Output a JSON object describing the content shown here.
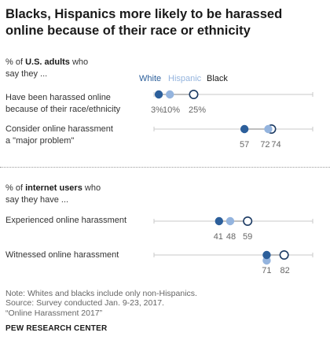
{
  "title": "Blacks, Hispanics more likely to be harassed online because of their race or ethnicity",
  "sections": [
    {
      "label_prefix": "% of ",
      "label_bold": "U.S. adults",
      "label_suffix": " who",
      "label_line2": "say they ..."
    },
    {
      "label_prefix": "% of ",
      "label_bold": "internet users",
      "label_suffix": " who",
      "label_line2": "say they have ..."
    }
  ],
  "legend": [
    {
      "name": "White",
      "color": "#2c5f9b"
    },
    {
      "name": "Hispanic",
      "color": "#94b4de"
    },
    {
      "name": "Black",
      "color": "#ffffff",
      "stroke": "#1b3a63",
      "text_color": "#1a1a1a"
    }
  ],
  "chart_data": {
    "type": "scatter",
    "subtype": "dot-plot",
    "x_range": [
      0,
      100
    ],
    "series": [
      "White",
      "Hispanic",
      "Black"
    ],
    "rows": [
      {
        "section": 0,
        "label": [
          "Have been harassed online",
          "because of their race/ethnicity"
        ],
        "values": [
          3,
          10,
          25
        ],
        "value_labels": [
          "3%",
          "10%",
          "25%"
        ]
      },
      {
        "section": 0,
        "label": [
          "Consider online harassment",
          "a \"major problem\""
        ],
        "values": [
          57,
          72,
          74
        ],
        "value_labels": [
          "57",
          "72",
          "74"
        ]
      },
      {
        "section": 1,
        "label": [
          "Experienced online harassment"
        ],
        "values": [
          41,
          48,
          59
        ],
        "value_labels": [
          "41",
          "48",
          "59"
        ]
      },
      {
        "section": 1,
        "label": [
          "Witnessed online harassment"
        ],
        "values": [
          71,
          71,
          82
        ],
        "value_labels": [
          "71",
          "",
          "82"
        ]
      }
    ]
  },
  "footer": {
    "note": "Note: Whites and blacks include only non-Hispanics.",
    "source": "Source: Survey conducted Jan. 9-23, 2017.",
    "report": "“Online Harassment 2017”"
  },
  "brand": "PEW RESEARCH CENTER"
}
